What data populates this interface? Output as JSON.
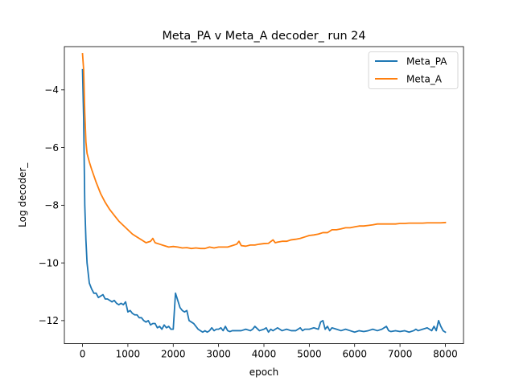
{
  "chart_data": {
    "type": "line",
    "title": "Meta_PA v Meta_A decoder_ run 24",
    "xlabel": "epoch",
    "ylabel": "Log decoder_",
    "xlim": [
      -400,
      8400
    ],
    "ylim": [
      -12.8,
      -2.5
    ],
    "xticks": [
      0,
      1000,
      2000,
      3000,
      4000,
      5000,
      6000,
      7000,
      8000
    ],
    "yticks": [
      -12,
      -10,
      -8,
      -6,
      -4
    ],
    "grid": false,
    "legend_position": "top-right",
    "series": [
      {
        "name": "Meta_PA",
        "color": "#1f77b4",
        "x": [
          0,
          25,
          50,
          75,
          100,
          150,
          200,
          250,
          300,
          350,
          400,
          450,
          500,
          550,
          600,
          650,
          700,
          750,
          800,
          850,
          900,
          950,
          1000,
          1050,
          1100,
          1150,
          1200,
          1250,
          1300,
          1350,
          1400,
          1450,
          1500,
          1550,
          1600,
          1650,
          1700,
          1750,
          1800,
          1850,
          1900,
          1950,
          2000,
          2050,
          2100,
          2150,
          2200,
          2250,
          2300,
          2350,
          2400,
          2450,
          2500,
          2550,
          2600,
          2650,
          2700,
          2750,
          2800,
          2850,
          2900,
          2950,
          3000,
          3050,
          3100,
          3150,
          3200,
          3250,
          3300,
          3400,
          3500,
          3600,
          3700,
          3750,
          3800,
          3900,
          4000,
          4050,
          4100,
          4150,
          4200,
          4250,
          4300,
          4400,
          4500,
          4600,
          4700,
          4800,
          4850,
          4900,
          5000,
          5100,
          5200,
          5250,
          5300,
          5350,
          5400,
          5450,
          5500,
          5600,
          5700,
          5800,
          5900,
          6000,
          6100,
          6200,
          6300,
          6400,
          6500,
          6600,
          6700,
          6750,
          6800,
          6900,
          7000,
          7100,
          7200,
          7300,
          7350,
          7400,
          7500,
          7600,
          7700,
          7750,
          7800,
          7850,
          7900,
          7950,
          8000
        ],
        "values": [
          -3.3,
          -5.0,
          -8.0,
          -9.2,
          -10.0,
          -10.7,
          -10.9,
          -11.05,
          -11.05,
          -11.2,
          -11.15,
          -11.1,
          -11.25,
          -11.25,
          -11.3,
          -11.35,
          -11.3,
          -11.4,
          -11.45,
          -11.4,
          -11.45,
          -11.35,
          -11.7,
          -11.65,
          -11.75,
          -11.8,
          -11.8,
          -11.9,
          -11.9,
          -12.0,
          -12.05,
          -12.0,
          -12.15,
          -12.1,
          -12.1,
          -12.25,
          -12.2,
          -12.3,
          -12.15,
          -12.25,
          -12.2,
          -12.3,
          -12.3,
          -11.05,
          -11.3,
          -11.55,
          -11.65,
          -11.7,
          -11.65,
          -12.0,
          -12.05,
          -12.1,
          -12.2,
          -12.3,
          -12.35,
          -12.4,
          -12.35,
          -12.4,
          -12.35,
          -12.25,
          -12.35,
          -12.3,
          -12.3,
          -12.25,
          -12.35,
          -12.2,
          -12.35,
          -12.38,
          -12.35,
          -12.35,
          -12.35,
          -12.3,
          -12.35,
          -12.3,
          -12.2,
          -12.35,
          -12.3,
          -12.25,
          -12.4,
          -12.3,
          -12.35,
          -12.3,
          -12.25,
          -12.35,
          -12.3,
          -12.35,
          -12.35,
          -12.25,
          -12.35,
          -12.3,
          -12.3,
          -12.25,
          -12.3,
          -12.05,
          -12.0,
          -12.3,
          -12.2,
          -12.35,
          -12.25,
          -12.3,
          -12.35,
          -12.3,
          -12.35,
          -12.4,
          -12.35,
          -12.38,
          -12.35,
          -12.3,
          -12.35,
          -12.3,
          -12.2,
          -12.35,
          -12.38,
          -12.35,
          -12.38,
          -12.35,
          -12.4,
          -12.35,
          -12.3,
          -12.35,
          -12.3,
          -12.25,
          -12.35,
          -12.2,
          -12.35,
          -12.0,
          -12.2,
          -12.35,
          -12.4
        ]
      },
      {
        "name": "Meta_A",
        "color": "#ff7f0e",
        "x": [
          0,
          25,
          50,
          75,
          100,
          150,
          200,
          300,
          400,
          500,
          600,
          700,
          800,
          900,
          1000,
          1100,
          1200,
          1300,
          1400,
          1500,
          1550,
          1600,
          1700,
          1800,
          1900,
          2000,
          2100,
          2200,
          2300,
          2400,
          2500,
          2600,
          2700,
          2800,
          2900,
          3000,
          3100,
          3200,
          3300,
          3400,
          3450,
          3500,
          3600,
          3700,
          3800,
          3900,
          4000,
          4100,
          4200,
          4250,
          4300,
          4400,
          4500,
          4600,
          4700,
          4800,
          4900,
          5000,
          5100,
          5200,
          5300,
          5400,
          5500,
          5600,
          5700,
          5800,
          5900,
          6000,
          6100,
          6200,
          6300,
          6400,
          6500,
          6600,
          6700,
          6800,
          6900,
          7000,
          7100,
          7200,
          7300,
          7400,
          7500,
          7600,
          7700,
          7800,
          7900,
          8000
        ],
        "values": [
          -2.75,
          -3.3,
          -4.8,
          -5.8,
          -6.2,
          -6.5,
          -6.75,
          -7.2,
          -7.6,
          -7.9,
          -8.15,
          -8.35,
          -8.55,
          -8.7,
          -8.85,
          -9.0,
          -9.1,
          -9.2,
          -9.3,
          -9.25,
          -9.15,
          -9.3,
          -9.35,
          -9.4,
          -9.45,
          -9.43,
          -9.45,
          -9.48,
          -9.47,
          -9.5,
          -9.48,
          -9.5,
          -9.5,
          -9.45,
          -9.48,
          -9.45,
          -9.45,
          -9.45,
          -9.4,
          -9.35,
          -9.25,
          -9.4,
          -9.42,
          -9.38,
          -9.38,
          -9.35,
          -9.33,
          -9.32,
          -9.2,
          -9.3,
          -9.28,
          -9.25,
          -9.25,
          -9.2,
          -9.18,
          -9.15,
          -9.1,
          -9.05,
          -9.03,
          -9.0,
          -8.95,
          -8.95,
          -8.85,
          -8.85,
          -8.82,
          -8.78,
          -8.78,
          -8.75,
          -8.72,
          -8.72,
          -8.7,
          -8.68,
          -8.65,
          -8.65,
          -8.65,
          -8.65,
          -8.65,
          -8.63,
          -8.63,
          -8.62,
          -8.62,
          -8.62,
          -8.62,
          -8.61,
          -8.61,
          -8.61,
          -8.61,
          -8.6
        ]
      }
    ]
  }
}
